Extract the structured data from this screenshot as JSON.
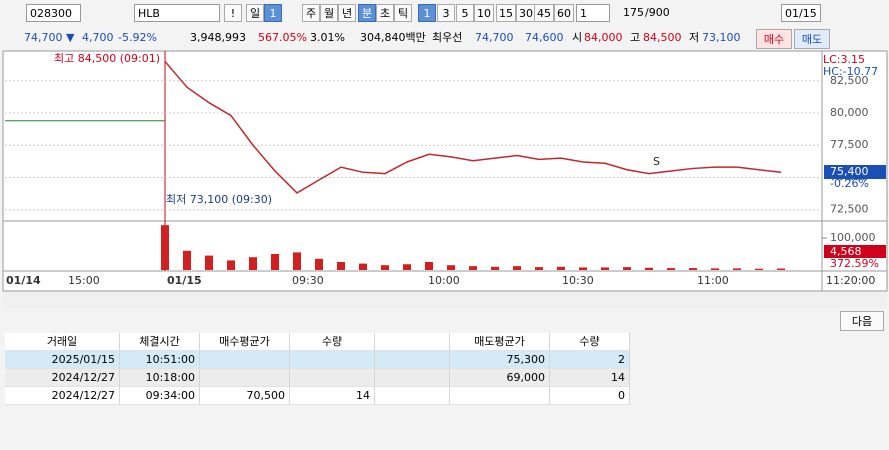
{
  "toolbar": {
    "code": "028300",
    "name": "HLB",
    "alert": "!",
    "periods": [
      "일",
      "1",
      "주",
      "월",
      "년",
      "분",
      "초",
      "틱"
    ],
    "intervals": [
      "1",
      "3",
      "5",
      "10",
      "15",
      "30",
      "45",
      "60"
    ],
    "unit": "1",
    "count": "175",
    "max": "/900",
    "date": "01/15"
  },
  "quote": {
    "price": "74,700 ▼",
    "change": "4,700",
    "rate": "-5.92%",
    "volume": "3,948,993",
    "vol_rate": "567.05%",
    "turnover_rate": "3.01%",
    "amount": "304,840백만",
    "best_label": "최우선",
    "ask": "74,700",
    "bid": "74,600",
    "open_label": "시",
    "open": "84,000",
    "high_label": "고",
    "high": "84,500",
    "low_label": "저",
    "low": "73,100",
    "buy": "매수",
    "sell": "매도"
  },
  "chart_data": [
    {
      "type": "line",
      "x": [
        "09:00",
        "09:05",
        "09:10",
        "09:15",
        "09:20",
        "09:25",
        "09:30",
        "09:35",
        "09:40",
        "09:45",
        "09:50",
        "09:55",
        "10:00",
        "10:05",
        "10:10",
        "10:15",
        "10:20",
        "10:25",
        "10:30",
        "10:35",
        "10:40",
        "10:45",
        "10:50",
        "10:55",
        "11:00",
        "11:05",
        "11:10",
        "11:15",
        "11:20"
      ],
      "values": [
        84000,
        82000,
        80800,
        79800,
        77500,
        75500,
        73800,
        74800,
        75800,
        75400,
        75300,
        76200,
        76800,
        76600,
        76300,
        76500,
        76700,
        76400,
        76500,
        76200,
        76100,
        75600,
        75300,
        75500,
        75700,
        75800,
        75800,
        75600,
        75400
      ],
      "color": "#c0282d",
      "prev_close": 79400,
      "ylim": [
        71700,
        84500
      ],
      "yticks": [
        {
          "value": 72500,
          "label": "72,500"
        },
        {
          "value": 75000,
          "label": "75,000"
        },
        {
          "value": 77500,
          "label": "77,500"
        },
        {
          "value": 80000,
          "label": "80,000"
        },
        {
          "value": 82500,
          "label": "82,500"
        }
      ],
      "grid": true,
      "annotations": [
        "최고 84,500 (09:01)",
        "최저 73,100 (09:30)",
        "S"
      ],
      "labels": {
        "lc": "LC:3.15",
        "hc": "HC:-10.77",
        "last": "75,400",
        "last_rate": "-0.26%"
      }
    },
    {
      "type": "bar",
      "x": [
        "09:00",
        "09:05",
        "09:10",
        "09:15",
        "09:20",
        "09:25",
        "09:30",
        "09:35",
        "09:40",
        "09:45",
        "09:50",
        "09:55",
        "10:00",
        "10:05",
        "10:10",
        "10:15",
        "10:20",
        "10:25",
        "10:30",
        "10:35",
        "10:40",
        "10:45",
        "10:50",
        "10:55",
        "11:00",
        "11:05",
        "11:10",
        "11:15",
        "11:20"
      ],
      "values": [
        140000,
        60000,
        45000,
        30000,
        40000,
        50000,
        55000,
        35000,
        25000,
        20000,
        15000,
        18000,
        25000,
        15000,
        12000,
        10000,
        12000,
        9000,
        10000,
        8000,
        8000,
        9000,
        7000,
        6000,
        6000,
        5000,
        5000,
        4000,
        4568
      ],
      "color": "#d02020",
      "ylim": [
        0,
        150000
      ],
      "yticks": [
        {
          "value": 100000,
          "label": "100,000"
        }
      ],
      "labels": {
        "last": "4,568",
        "rate": "372.59%"
      }
    }
  ],
  "time_axis": [
    "01/14",
    "15:00",
    "01/15",
    "09:30",
    "10:00",
    "10:30",
    "11:00",
    "11:20:00"
  ],
  "next_button": "다음",
  "table": {
    "headers": [
      "거래일",
      "체결시간",
      "매수평균가",
      "수량",
      null,
      "매도평균가",
      "수량"
    ],
    "rows": [
      [
        "2025/01/15",
        "10:51:00",
        null,
        null,
        null,
        "75,300",
        "2"
      ],
      [
        "2024/12/27",
        "10:18:00",
        null,
        null,
        null,
        "69,000",
        "14"
      ],
      [
        "2024/12/27",
        "09:34:00",
        "70,500",
        "14",
        null,
        null,
        "0"
      ]
    ]
  }
}
